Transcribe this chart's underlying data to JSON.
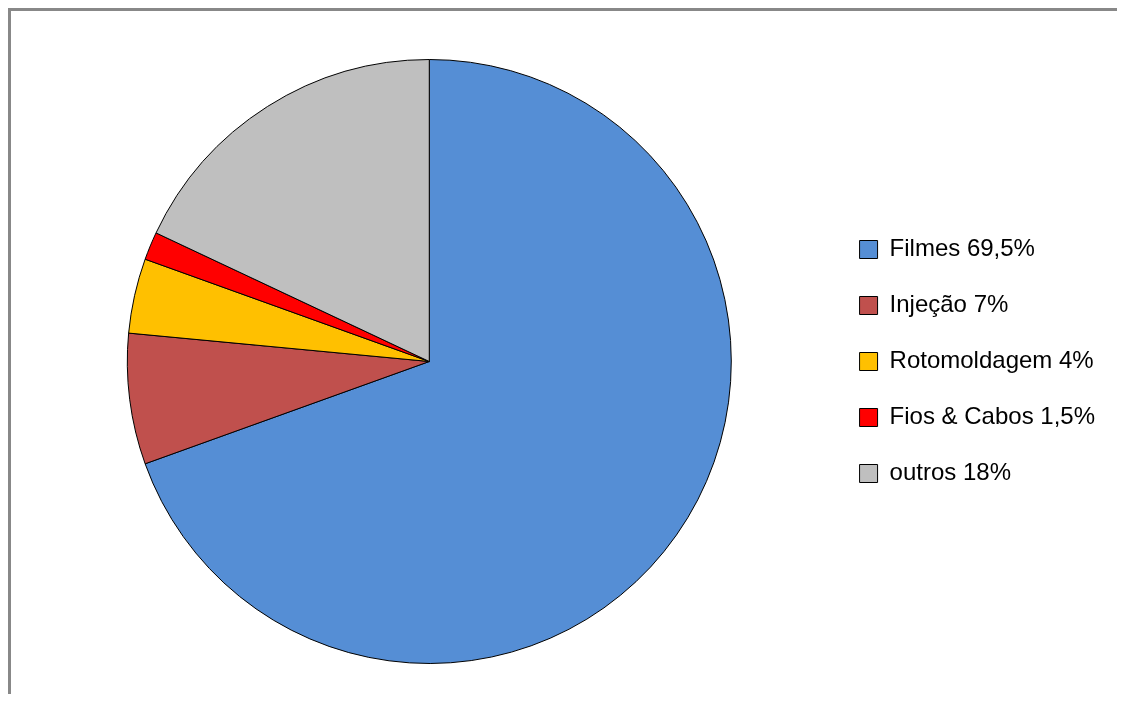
{
  "chart_data": {
    "type": "pie",
    "categories": [
      "Filmes 69,5%",
      "Injeção 7%",
      "Rotomoldagem 4%",
      "Fios & Cabos 1,5%",
      "outros 18%"
    ],
    "values": [
      69.5,
      7,
      4,
      1.5,
      18
    ],
    "colors": [
      "#558ed5",
      "#c0504d",
      "#ffc000",
      "#ff0000",
      "#bfbfbf"
    ],
    "legend": "right"
  }
}
